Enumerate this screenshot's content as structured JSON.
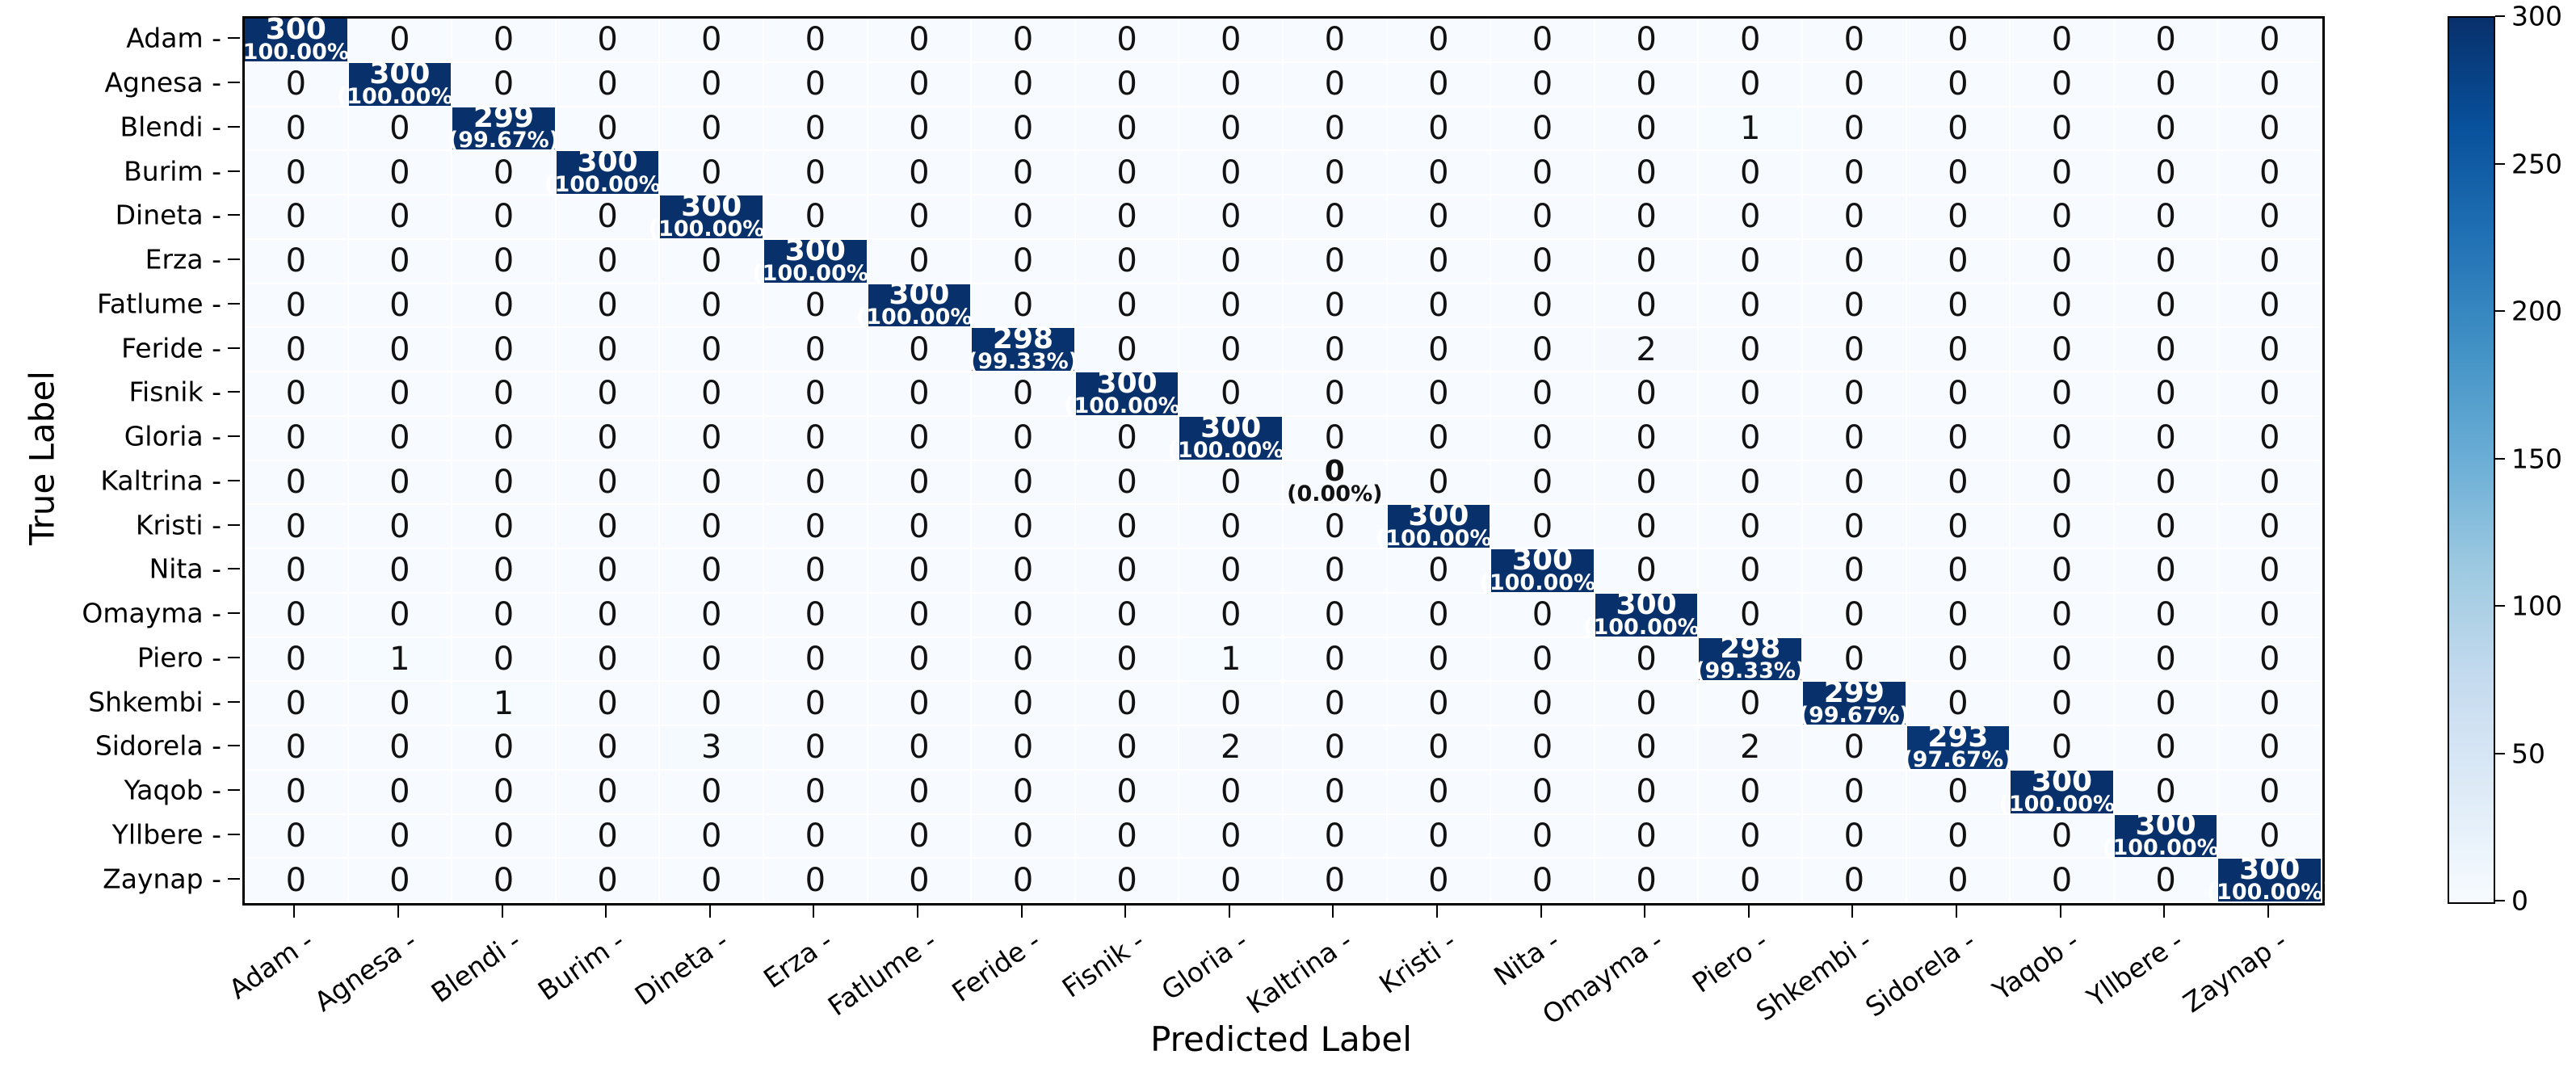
{
  "figure": {
    "background": "#ffffff",
    "tick_suffix": " -"
  },
  "axes": {
    "xlabel": "Predicted Label",
    "ylabel": "True Label"
  },
  "chart_data": {
    "type": "heatmap",
    "subtype": "confusion-matrix",
    "title": "",
    "xlabel": "Predicted Label",
    "ylabel": "True Label",
    "colormap": "Blues",
    "vmin": 0,
    "vmax": 300,
    "legend_position": "right-colorbar",
    "grid": "white-cell-separators",
    "colorbar_ticks": [
      0,
      50,
      100,
      150,
      200,
      250,
      300
    ],
    "colors": {
      "cell_max": "#08306b",
      "cell_min": "#f7fbff",
      "annotation_dark_cell": "#ffffff",
      "annotation_light_cell": "#111111",
      "axis": "#000000"
    },
    "classes": [
      "Adam",
      "Agnesa",
      "Blendi",
      "Burim",
      "Dineta",
      "Erza",
      "Fatlume",
      "Feride",
      "Fisnik",
      "Gloria",
      "Kaltrina",
      "Kristi",
      "Nita",
      "Omayma",
      "Piero",
      "Shkembi",
      "Sidorela",
      "Yaqob",
      "Yllbere",
      "Zaynap"
    ],
    "matrix": [
      [
        300,
        0,
        0,
        0,
        0,
        0,
        0,
        0,
        0,
        0,
        0,
        0,
        0,
        0,
        0,
        0,
        0,
        0,
        0,
        0
      ],
      [
        0,
        300,
        0,
        0,
        0,
        0,
        0,
        0,
        0,
        0,
        0,
        0,
        0,
        0,
        0,
        0,
        0,
        0,
        0,
        0
      ],
      [
        0,
        0,
        299,
        0,
        0,
        0,
        0,
        0,
        0,
        0,
        0,
        0,
        0,
        0,
        1,
        0,
        0,
        0,
        0,
        0
      ],
      [
        0,
        0,
        0,
        300,
        0,
        0,
        0,
        0,
        0,
        0,
        0,
        0,
        0,
        0,
        0,
        0,
        0,
        0,
        0,
        0
      ],
      [
        0,
        0,
        0,
        0,
        300,
        0,
        0,
        0,
        0,
        0,
        0,
        0,
        0,
        0,
        0,
        0,
        0,
        0,
        0,
        0
      ],
      [
        0,
        0,
        0,
        0,
        0,
        300,
        0,
        0,
        0,
        0,
        0,
        0,
        0,
        0,
        0,
        0,
        0,
        0,
        0,
        0
      ],
      [
        0,
        0,
        0,
        0,
        0,
        0,
        300,
        0,
        0,
        0,
        0,
        0,
        0,
        0,
        0,
        0,
        0,
        0,
        0,
        0
      ],
      [
        0,
        0,
        0,
        0,
        0,
        0,
        0,
        298,
        0,
        0,
        0,
        0,
        0,
        2,
        0,
        0,
        0,
        0,
        0,
        0
      ],
      [
        0,
        0,
        0,
        0,
        0,
        0,
        0,
        0,
        300,
        0,
        0,
        0,
        0,
        0,
        0,
        0,
        0,
        0,
        0,
        0
      ],
      [
        0,
        0,
        0,
        0,
        0,
        0,
        0,
        0,
        0,
        300,
        0,
        0,
        0,
        0,
        0,
        0,
        0,
        0,
        0,
        0
      ],
      [
        0,
        0,
        0,
        0,
        0,
        0,
        0,
        0,
        0,
        0,
        0,
        0,
        0,
        0,
        0,
        0,
        0,
        0,
        0,
        0
      ],
      [
        0,
        0,
        0,
        0,
        0,
        0,
        0,
        0,
        0,
        0,
        0,
        300,
        0,
        0,
        0,
        0,
        0,
        0,
        0,
        0
      ],
      [
        0,
        0,
        0,
        0,
        0,
        0,
        0,
        0,
        0,
        0,
        0,
        0,
        300,
        0,
        0,
        0,
        0,
        0,
        0,
        0
      ],
      [
        0,
        0,
        0,
        0,
        0,
        0,
        0,
        0,
        0,
        0,
        0,
        0,
        0,
        300,
        0,
        0,
        0,
        0,
        0,
        0
      ],
      [
        0,
        1,
        0,
        0,
        0,
        0,
        0,
        0,
        0,
        1,
        0,
        0,
        0,
        0,
        298,
        0,
        0,
        0,
        0,
        0
      ],
      [
        0,
        0,
        1,
        0,
        0,
        0,
        0,
        0,
        0,
        0,
        0,
        0,
        0,
        0,
        0,
        299,
        0,
        0,
        0,
        0
      ],
      [
        0,
        0,
        0,
        0,
        3,
        0,
        0,
        0,
        0,
        2,
        0,
        0,
        0,
        0,
        2,
        0,
        293,
        0,
        0,
        0
      ],
      [
        0,
        0,
        0,
        0,
        0,
        0,
        0,
        0,
        0,
        0,
        0,
        0,
        0,
        0,
        0,
        0,
        0,
        300,
        0,
        0
      ],
      [
        0,
        0,
        0,
        0,
        0,
        0,
        0,
        0,
        0,
        0,
        0,
        0,
        0,
        0,
        0,
        0,
        0,
        0,
        300,
        0
      ],
      [
        0,
        0,
        0,
        0,
        0,
        0,
        0,
        0,
        0,
        0,
        0,
        0,
        0,
        0,
        0,
        0,
        0,
        0,
        0,
        300
      ]
    ],
    "diagonal_percent_labels": [
      "(100.00%)",
      "(100.00%)",
      "(99.67%)",
      "(100.00%)",
      "(100.00%)",
      "(100.00%)",
      "(100.00%)",
      "(99.33%)",
      "(100.00%)",
      "(100.00%)",
      "(0.00%)",
      "(100.00%)",
      "(100.00%)",
      "(100.00%)",
      "(99.33%)",
      "(99.67%)",
      "(97.67%)",
      "(100.00%)",
      "(100.00%)",
      "(100.00%)"
    ]
  }
}
